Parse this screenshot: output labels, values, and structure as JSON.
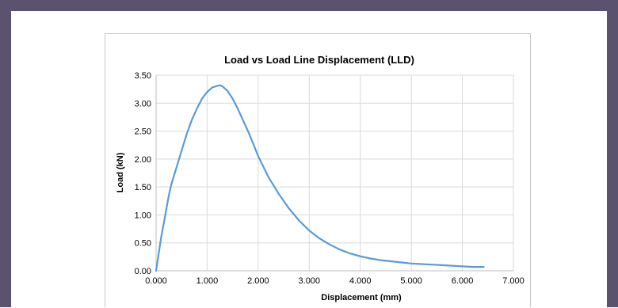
{
  "chart_data": {
    "type": "line",
    "title": "Load vs Load Line Displacement (LLD)",
    "xlabel": "Displacement (mm)",
    "ylabel": "Load (kN)",
    "xlim": [
      0,
      7
    ],
    "ylim": [
      0,
      3.5
    ],
    "x_ticks": [
      "0.000",
      "1.000",
      "2.000",
      "3.000",
      "4.000",
      "5.000",
      "6.000",
      "7.000"
    ],
    "y_ticks": [
      "0.00",
      "0.50",
      "1.00",
      "1.50",
      "2.00",
      "2.50",
      "3.00",
      "3.50"
    ],
    "grid": true,
    "legend": "none",
    "colors": {
      "line": "#5b9bd5",
      "grid": "#d9d9d9"
    },
    "series": [
      {
        "x": [
          0.0,
          0.05,
          0.1,
          0.15,
          0.2,
          0.25,
          0.3,
          0.4,
          0.5,
          0.6,
          0.7,
          0.8,
          0.9,
          1.0,
          1.1,
          1.2,
          1.25,
          1.3,
          1.4,
          1.5,
          1.6,
          1.7,
          1.8,
          1.9,
          2.0,
          2.2,
          2.4,
          2.6,
          2.8,
          3.0,
          3.2,
          3.4,
          3.6,
          3.8,
          4.0,
          4.2,
          4.4,
          4.6,
          4.8,
          5.0,
          5.2,
          5.4,
          5.6,
          5.8,
          6.0,
          6.2,
          6.42
        ],
        "y": [
          0.0,
          0.3,
          0.6,
          0.85,
          1.1,
          1.35,
          1.55,
          1.85,
          2.15,
          2.45,
          2.7,
          2.9,
          3.08,
          3.2,
          3.28,
          3.31,
          3.32,
          3.3,
          3.22,
          3.08,
          2.9,
          2.7,
          2.5,
          2.28,
          2.05,
          1.68,
          1.38,
          1.12,
          0.9,
          0.72,
          0.58,
          0.47,
          0.38,
          0.31,
          0.26,
          0.22,
          0.19,
          0.17,
          0.15,
          0.13,
          0.12,
          0.11,
          0.1,
          0.09,
          0.08,
          0.07,
          0.07
        ]
      }
    ]
  }
}
